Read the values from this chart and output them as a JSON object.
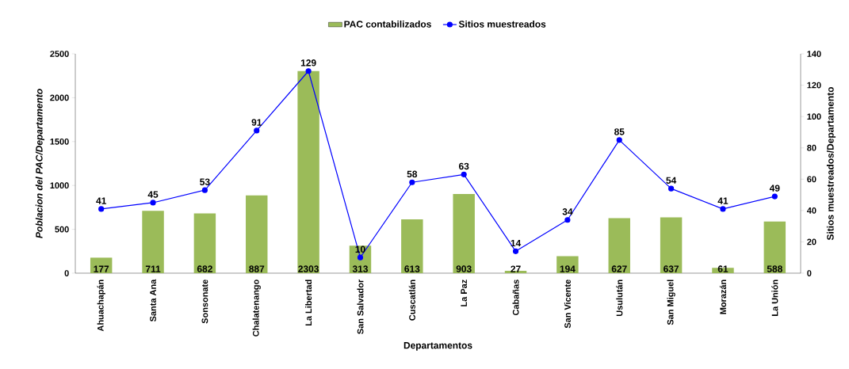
{
  "chart_data": {
    "type": "bar",
    "xlabel": "Departamentos",
    "ylabel": "Poblacion del PAC/Departamento",
    "y2label": "Sitios muestreados/Departamento",
    "categories": [
      "Ahuachapán",
      "Santa Ana",
      "Sonsonate",
      "Chalatenango",
      "La Libertad",
      "San Salvador",
      "Cuscatlán",
      "La Paz",
      "Cabañas",
      "San Vicente",
      "Usulután",
      "San Miguel",
      "Morazán",
      "La Unión"
    ],
    "series": [
      {
        "name": "PAC contabilizados",
        "color": "#9bbb59",
        "values": [
          177,
          711,
          682,
          887,
          2303,
          313,
          613,
          903,
          27,
          194,
          627,
          637,
          61,
          588
        ]
      },
      {
        "name": "Sitios muestreados",
        "type": "line",
        "axis": "y2",
        "color": "#0000ff",
        "marker": "circle",
        "values": [
          41,
          45,
          53,
          91,
          129,
          10,
          58,
          63,
          14,
          34,
          85,
          54,
          41,
          49
        ]
      }
    ],
    "ylim": [
      0,
      2500
    ],
    "yticks": [
      0,
      500,
      1000,
      1500,
      2000,
      2500
    ],
    "y2lim": [
      0,
      140
    ],
    "y2ticks": [
      0,
      20,
      40,
      60,
      80,
      100,
      120,
      140
    ],
    "data_labels": true,
    "legend": "top",
    "grid": false
  }
}
